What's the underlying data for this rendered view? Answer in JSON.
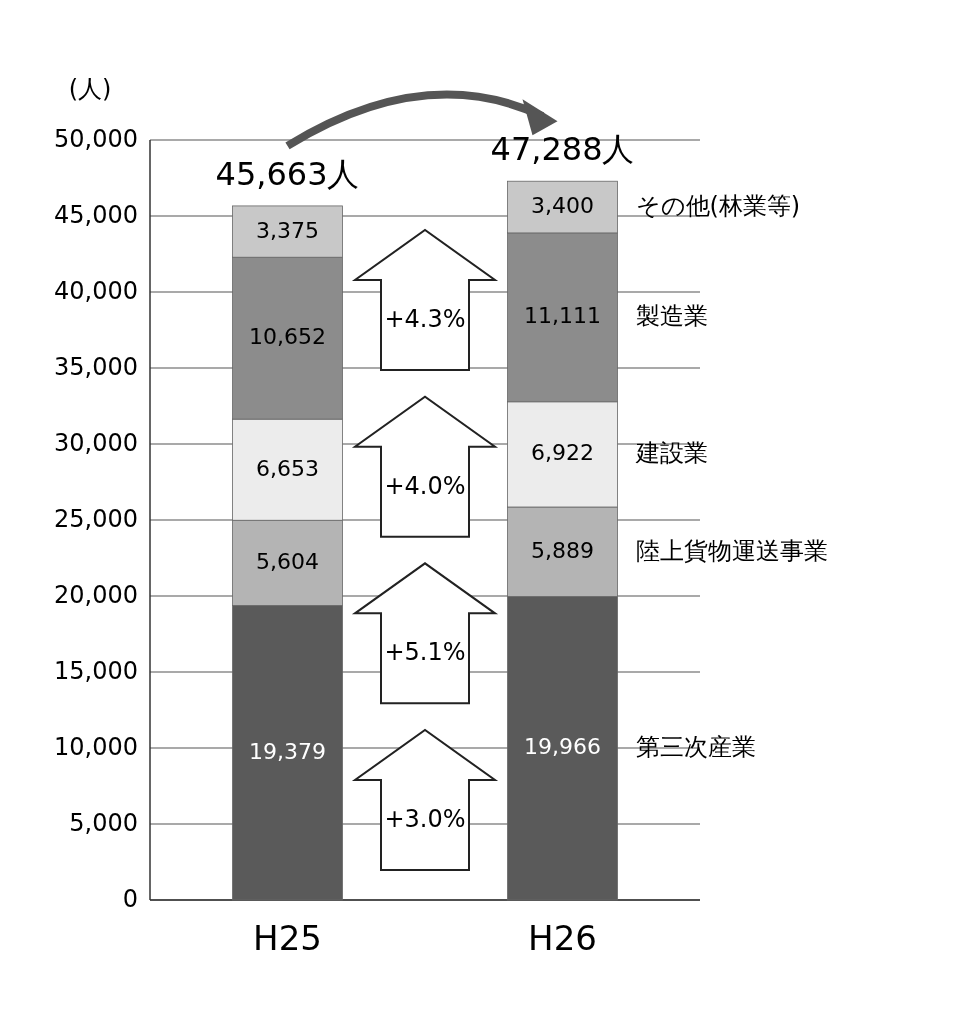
{
  "chart_data": {
    "type": "bar",
    "stacked": true,
    "ylabel": "(人)",
    "categories": [
      "H25",
      "H26"
    ],
    "series": [
      {
        "name": "第三次産業",
        "color": "#5a5a5a",
        "values": [
          19379,
          19966
        ],
        "value_labels": [
          "19,379",
          "19,966"
        ]
      },
      {
        "name": "陸上貨物運送事業",
        "color": "#b4b4b4",
        "values": [
          5604,
          5889
        ],
        "value_labels": [
          "5,604",
          "5,889"
        ]
      },
      {
        "name": "建設業",
        "color": "#ececec",
        "values": [
          6653,
          6922
        ],
        "value_labels": [
          "6,653",
          "6,922"
        ]
      },
      {
        "name": "製造業",
        "color": "#8c8c8c",
        "values": [
          10652,
          11111
        ],
        "value_labels": [
          "10,652",
          "11,111"
        ]
      },
      {
        "name": "その他(林業等)",
        "color": "#c8c8c8",
        "values": [
          3375,
          3400
        ],
        "value_labels": [
          "3,375",
          "3,400"
        ]
      }
    ],
    "totals": [
      "45,663人",
      "47,288人"
    ],
    "annotations": [
      "+4.3%",
      "+4.0%",
      "+5.1%",
      "+3.0%"
    ],
    "ylim": [
      0,
      50000
    ],
    "yticks": [
      {
        "value": 0,
        "label": "0"
      },
      {
        "value": 5000,
        "label": "5,000"
      },
      {
        "value": 10000,
        "label": "10,000"
      },
      {
        "value": 15000,
        "label": "15,000"
      },
      {
        "value": 20000,
        "label": "20,000"
      },
      {
        "value": 25000,
        "label": "25,000"
      },
      {
        "value": 30000,
        "label": "30,000"
      },
      {
        "value": 35000,
        "label": "35,000"
      },
      {
        "value": 40000,
        "label": "40,000"
      },
      {
        "value": 45000,
        "label": "45,000"
      },
      {
        "value": 50000,
        "label": "50,000"
      }
    ],
    "grid": "y",
    "legend": false
  }
}
